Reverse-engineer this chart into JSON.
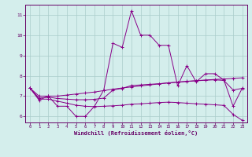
{
  "xlabel": "Windchill (Refroidissement éolien,°C)",
  "bg_color": "#d4eeec",
  "grid_color": "#aaccca",
  "line_color": "#880088",
  "spine_color": "#660066",
  "xlim": [
    -0.5,
    23.5
  ],
  "ylim": [
    5.7,
    11.5
  ],
  "yticks": [
    6,
    7,
    8,
    9,
    10,
    11
  ],
  "xticks": [
    0,
    1,
    2,
    3,
    4,
    5,
    6,
    7,
    8,
    9,
    10,
    11,
    12,
    13,
    14,
    15,
    16,
    17,
    18,
    19,
    20,
    21,
    22,
    23
  ],
  "series": [
    [
      7.4,
      6.8,
      7.0,
      6.5,
      6.5,
      6.0,
      6.0,
      6.5,
      7.3,
      9.6,
      9.4,
      11.2,
      10.0,
      10.0,
      9.5,
      9.5,
      7.5,
      8.5,
      7.7,
      8.1,
      8.1,
      7.8,
      6.5,
      7.4
    ],
    [
      7.4,
      7.0,
      7.0,
      7.0,
      7.05,
      7.1,
      7.15,
      7.2,
      7.27,
      7.34,
      7.4,
      7.45,
      7.5,
      7.55,
      7.6,
      7.65,
      7.69,
      7.73,
      7.76,
      7.79,
      7.82,
      7.84,
      7.87,
      7.9
    ],
    [
      7.4,
      6.85,
      6.85,
      6.75,
      6.65,
      6.55,
      6.5,
      6.48,
      6.5,
      6.52,
      6.55,
      6.6,
      6.62,
      6.65,
      6.68,
      6.7,
      6.68,
      6.65,
      6.62,
      6.6,
      6.57,
      6.54,
      6.1,
      5.8
    ],
    [
      7.4,
      6.9,
      6.95,
      6.88,
      6.85,
      6.82,
      6.82,
      6.84,
      6.9,
      7.3,
      7.38,
      7.52,
      7.55,
      7.58,
      7.61,
      7.65,
      7.68,
      7.72,
      7.75,
      7.78,
      7.8,
      7.77,
      7.3,
      7.38
    ]
  ]
}
